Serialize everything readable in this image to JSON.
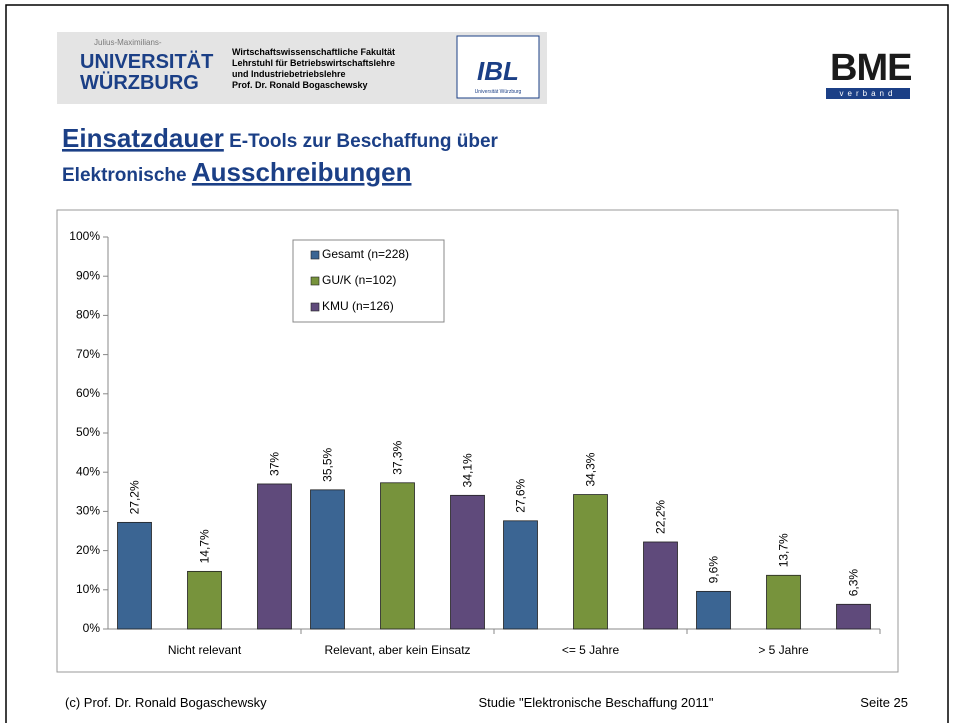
{
  "header": {
    "uni_small": "Julius-Maximilians-",
    "uni_line1": "UNIVERSITÄT",
    "uni_line2": "WÜRZBURG",
    "faculty": [
      "Wirtschaftswissenschaftliche Fakultät",
      "Lehrstuhl für Betriebswirtschaftslehre",
      "und Industriebetriebslehre",
      "Prof. Dr. Ronald Bogaschewsky"
    ],
    "ibl": "IBL",
    "ibl_sub": "Universität Würzburg",
    "bme": "BME",
    "bme_sub": "verband"
  },
  "title": {
    "part1": "Einsatzdauer",
    "part2": " E-Tools zur Beschaffung über",
    "part3": "Elektronische ",
    "part4": "Ausschreibungen"
  },
  "footer": {
    "left": "(c) Prof. Dr. Ronald Bogaschewsky",
    "center": "Studie \"Elektronische Beschaffung 2011\"",
    "right": "Seite 25"
  },
  "chart_data": {
    "type": "bar",
    "categories": [
      "Nicht relevant",
      "Relevant, aber kein Einsatz",
      "<= 5 Jahre",
      "> 5 Jahre"
    ],
    "series": [
      {
        "name": "Gesamt (n=228)",
        "color": "#3b6593",
        "values": [
          27.2,
          35.5,
          27.6,
          9.6
        ],
        "value_labels": [
          "27,2%",
          "35,5%",
          "27,6%",
          "9,6%"
        ]
      },
      {
        "name": "GU/K (n=102)",
        "color": "#77933c",
        "values": [
          14.7,
          37.3,
          34.3,
          13.7
        ],
        "value_labels": [
          "14,7%",
          "37,3%",
          "34,3%",
          "13,7%"
        ]
      },
      {
        "name": "KMU (n=126)",
        "color": "#5f4a7b",
        "values": [
          37,
          34.1,
          22.2,
          6.3
        ],
        "value_labels": [
          "37%",
          "34,1%",
          "22,2%",
          "6,3%"
        ]
      }
    ],
    "ylim": [
      0,
      100
    ],
    "yticks": [
      {
        "value": 0,
        "label": "0%"
      },
      {
        "value": 10,
        "label": "10%"
      },
      {
        "value": 20,
        "label": "20%"
      },
      {
        "value": 30,
        "label": "30%"
      },
      {
        "value": 40,
        "label": "40%"
      },
      {
        "value": 50,
        "label": "50%"
      },
      {
        "value": 60,
        "label": "60%"
      },
      {
        "value": 70,
        "label": "70%"
      },
      {
        "value": 80,
        "label": "80%"
      },
      {
        "value": 90,
        "label": "90%"
      },
      {
        "value": 100,
        "label": "100%"
      }
    ],
    "legend": "top-left"
  }
}
